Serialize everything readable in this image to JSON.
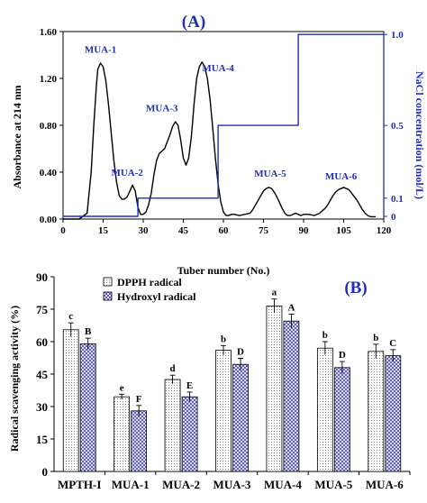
{
  "chart_data": [
    {
      "type": "line",
      "panel_label": "(A)",
      "xlabel": "Tuber number (No.)",
      "ylabel": "Absorbance at 214 nm",
      "y2label": "NaCl concentration (mol/L)",
      "xlim": [
        0,
        120
      ],
      "ylim": [
        0,
        1.6
      ],
      "y2lim": [
        0,
        1.0
      ],
      "x_ticks": [
        "0",
        "15",
        "30",
        "45",
        "60",
        "75",
        "90",
        "105",
        "120"
      ],
      "y_ticks": [
        "0.00",
        "0.40",
        "0.80",
        "1.20",
        "1.60"
      ],
      "y2_ticks": [
        "0",
        "0.1",
        "0.5",
        "1.0"
      ],
      "colors": {
        "absorbance": "#000000",
        "nacl": "#1f2db8",
        "label": "#1f2db8"
      },
      "series": [
        {
          "key": "absorbance",
          "x": [
            0,
            6,
            9,
            10.5,
            11.5,
            12.5,
            13,
            14,
            15,
            16,
            17,
            18,
            19,
            20,
            21,
            22,
            23,
            24,
            25,
            26,
            27,
            28,
            29,
            30,
            31,
            32,
            33,
            34,
            35,
            36,
            37,
            38,
            39,
            40,
            41,
            42,
            43,
            44,
            45,
            46,
            47,
            48,
            49,
            50,
            51,
            52,
            53,
            54,
            55,
            56,
            57,
            58,
            59,
            60,
            61,
            62,
            63,
            64,
            66,
            68,
            70,
            71,
            72,
            73,
            74,
            75,
            76,
            77,
            78,
            79,
            80,
            81,
            82,
            83,
            84,
            85,
            86,
            87,
            88,
            89,
            90,
            92,
            94,
            96,
            98,
            99,
            100,
            101,
            102,
            103,
            104,
            105,
            106,
            107,
            108,
            109,
            110,
            111,
            112,
            113,
            114,
            115,
            116,
            117
          ],
          "values": [
            0,
            0,
            0.05,
            0.4,
            0.8,
            1.15,
            1.28,
            1.33,
            1.3,
            1.18,
            0.98,
            0.74,
            0.5,
            0.32,
            0.2,
            0.17,
            0.17,
            0.19,
            0.24,
            0.29,
            0.24,
            0.1,
            0.04,
            0.04,
            0.06,
            0.12,
            0.22,
            0.38,
            0.5,
            0.56,
            0.58,
            0.6,
            0.66,
            0.72,
            0.79,
            0.83,
            0.8,
            0.68,
            0.52,
            0.46,
            0.52,
            0.7,
            0.98,
            1.2,
            1.3,
            1.34,
            1.3,
            1.2,
            1.02,
            0.78,
            0.52,
            0.3,
            0.15,
            0.06,
            0.03,
            0.03,
            0.04,
            0.04,
            0.03,
            0.04,
            0.05,
            0.08,
            0.12,
            0.16,
            0.2,
            0.24,
            0.26,
            0.27,
            0.26,
            0.23,
            0.19,
            0.14,
            0.09,
            0.05,
            0.03,
            0.03,
            0.04,
            0.05,
            0.04,
            0.03,
            0.04,
            0.04,
            0.03,
            0.05,
            0.09,
            0.12,
            0.16,
            0.2,
            0.23,
            0.25,
            0.26,
            0.27,
            0.26,
            0.25,
            0.22,
            0.19,
            0.16,
            0.12,
            0.08,
            0.05,
            0.03,
            0.02,
            0.02,
            0.02
          ]
        },
        {
          "key": "nacl",
          "x": [
            0,
            28,
            28,
            58,
            58,
            88,
            88,
            120
          ],
          "values": [
            0.0,
            0.0,
            0.1,
            0.1,
            0.5,
            0.5,
            1.0,
            1.0
          ]
        }
      ],
      "annotations": [
        {
          "text": "MUA-1",
          "x": 14,
          "y": 1.42
        },
        {
          "text": "MUA-2",
          "x": 24,
          "y": 0.37
        },
        {
          "text": "MUA-3",
          "x": 37,
          "y": 0.92
        },
        {
          "text": "MUA-4",
          "x": 58,
          "y": 1.26
        },
        {
          "text": "MUA-5",
          "x": 77.5,
          "y": 0.36
        },
        {
          "text": "MUA-6",
          "x": 104,
          "y": 0.34
        }
      ]
    },
    {
      "type": "bar",
      "panel_label": "(B)",
      "ylabel": "Radical scavenging activity (%)",
      "xlabel": "",
      "ylim": [
        0,
        90
      ],
      "y_ticks": [
        "0",
        "15",
        "30",
        "45",
        "60",
        "75",
        "90"
      ],
      "categories": [
        "MPTH-I",
        "MUA-1",
        "MUA-2",
        "MUA-3",
        "MUA-4",
        "MUA-5",
        "MUA-6"
      ],
      "legend_position": "top-left",
      "series": [
        {
          "name": "DPPH radical",
          "pattern": "dots",
          "values": [
            65.5,
            34.5,
            42.5,
            56,
            76.5,
            57,
            55.5
          ],
          "errors": [
            3.2,
            1.2,
            2,
            2.2,
            3.2,
            3,
            3.3
          ],
          "letters": [
            "c",
            "e",
            "d",
            "b",
            "a",
            "b",
            "b"
          ]
        },
        {
          "name": "Hydroxyl radical",
          "pattern": "crosshatch",
          "color": "#4a4ab0",
          "values": [
            59,
            28,
            34.5,
            49.5,
            69.5,
            48,
            53.5
          ],
          "errors": [
            2.6,
            2.5,
            2.2,
            2.8,
            3.2,
            2.8,
            2.8
          ],
          "letters": [
            "B",
            "F",
            "E",
            "D",
            "A",
            "D",
            "C"
          ]
        }
      ]
    }
  ]
}
